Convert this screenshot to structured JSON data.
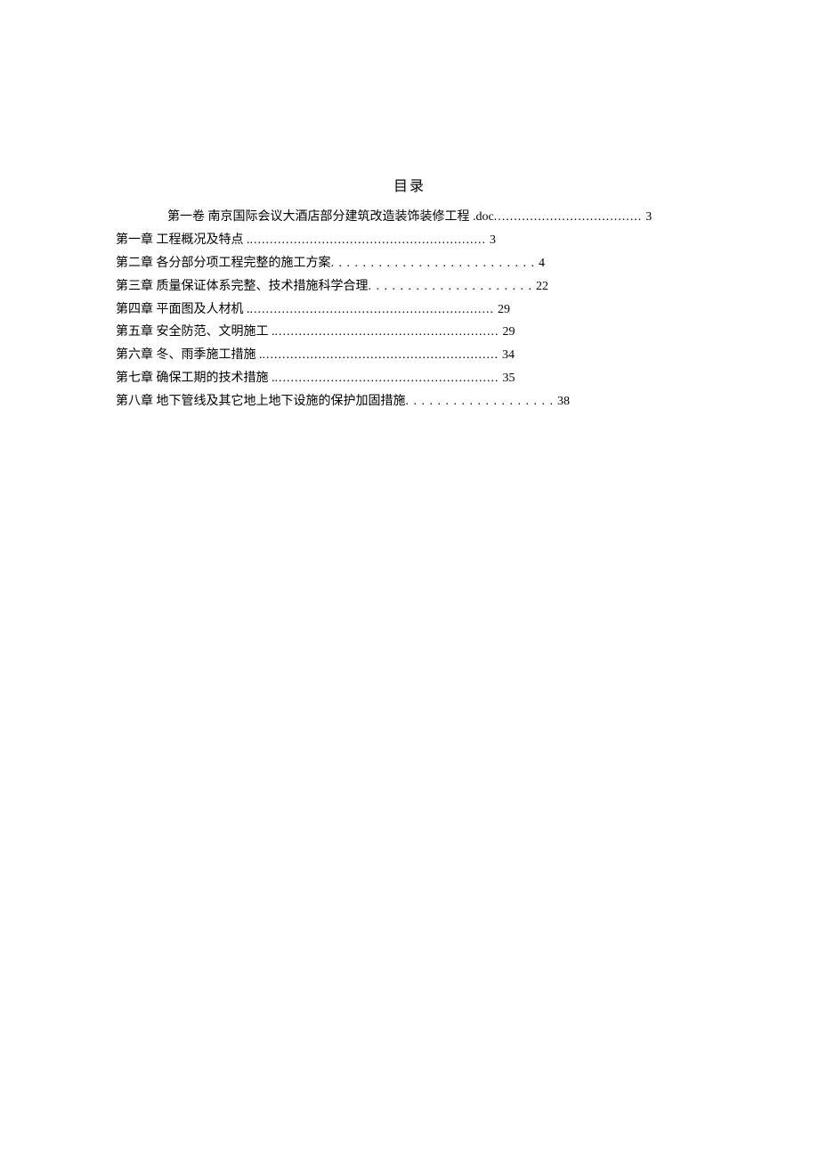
{
  "title": "目录",
  "entries": [
    {
      "label": "第一卷 南京国际会议大酒店部分建筑改造装饰装修工程 .doc ",
      "dots": ".....................................",
      "page": " 3",
      "indent": true
    },
    {
      "label": "第一章 工程概况及特点 . ",
      "dots": "...........................................................",
      "page": " 3",
      "indent": false
    },
    {
      "label": "第二章 各分部分项工程完整的施工方案  ",
      "dots": ". . . . . . . . . . . . . . . . . . . . . . . . . .",
      "page": " 4",
      "indent": false
    },
    {
      "label": "第三章 质量保证体系完整、技术措施科学合理   ",
      "dots": ". . . . . . . . . . . . . . . . . . . . .",
      "page": " 22",
      "indent": false
    },
    {
      "label": "第四章 平面图及人材机 . ",
      "dots": ".............................................................",
      "page": " 29",
      "indent": false
    },
    {
      "label": "第五章 安全防范、文明施工 . ",
      "dots": "........................................................",
      "page": " 29",
      "indent": false
    },
    {
      "label": "第六章 冬、雨季施工措施 . ",
      "dots": "...........................................................",
      "page": " 34",
      "indent": false
    },
    {
      "label": "第七章 确保工期的技术措施 . ",
      "dots": "........................................................",
      "page": " 35",
      "indent": false
    },
    {
      "label": "第八章 地下管线及其它地上地下设施的保护加固措施  ",
      "dots": ". . . . . . . . . . . . . . . . . . .",
      "page": " 38",
      "indent": false
    }
  ]
}
